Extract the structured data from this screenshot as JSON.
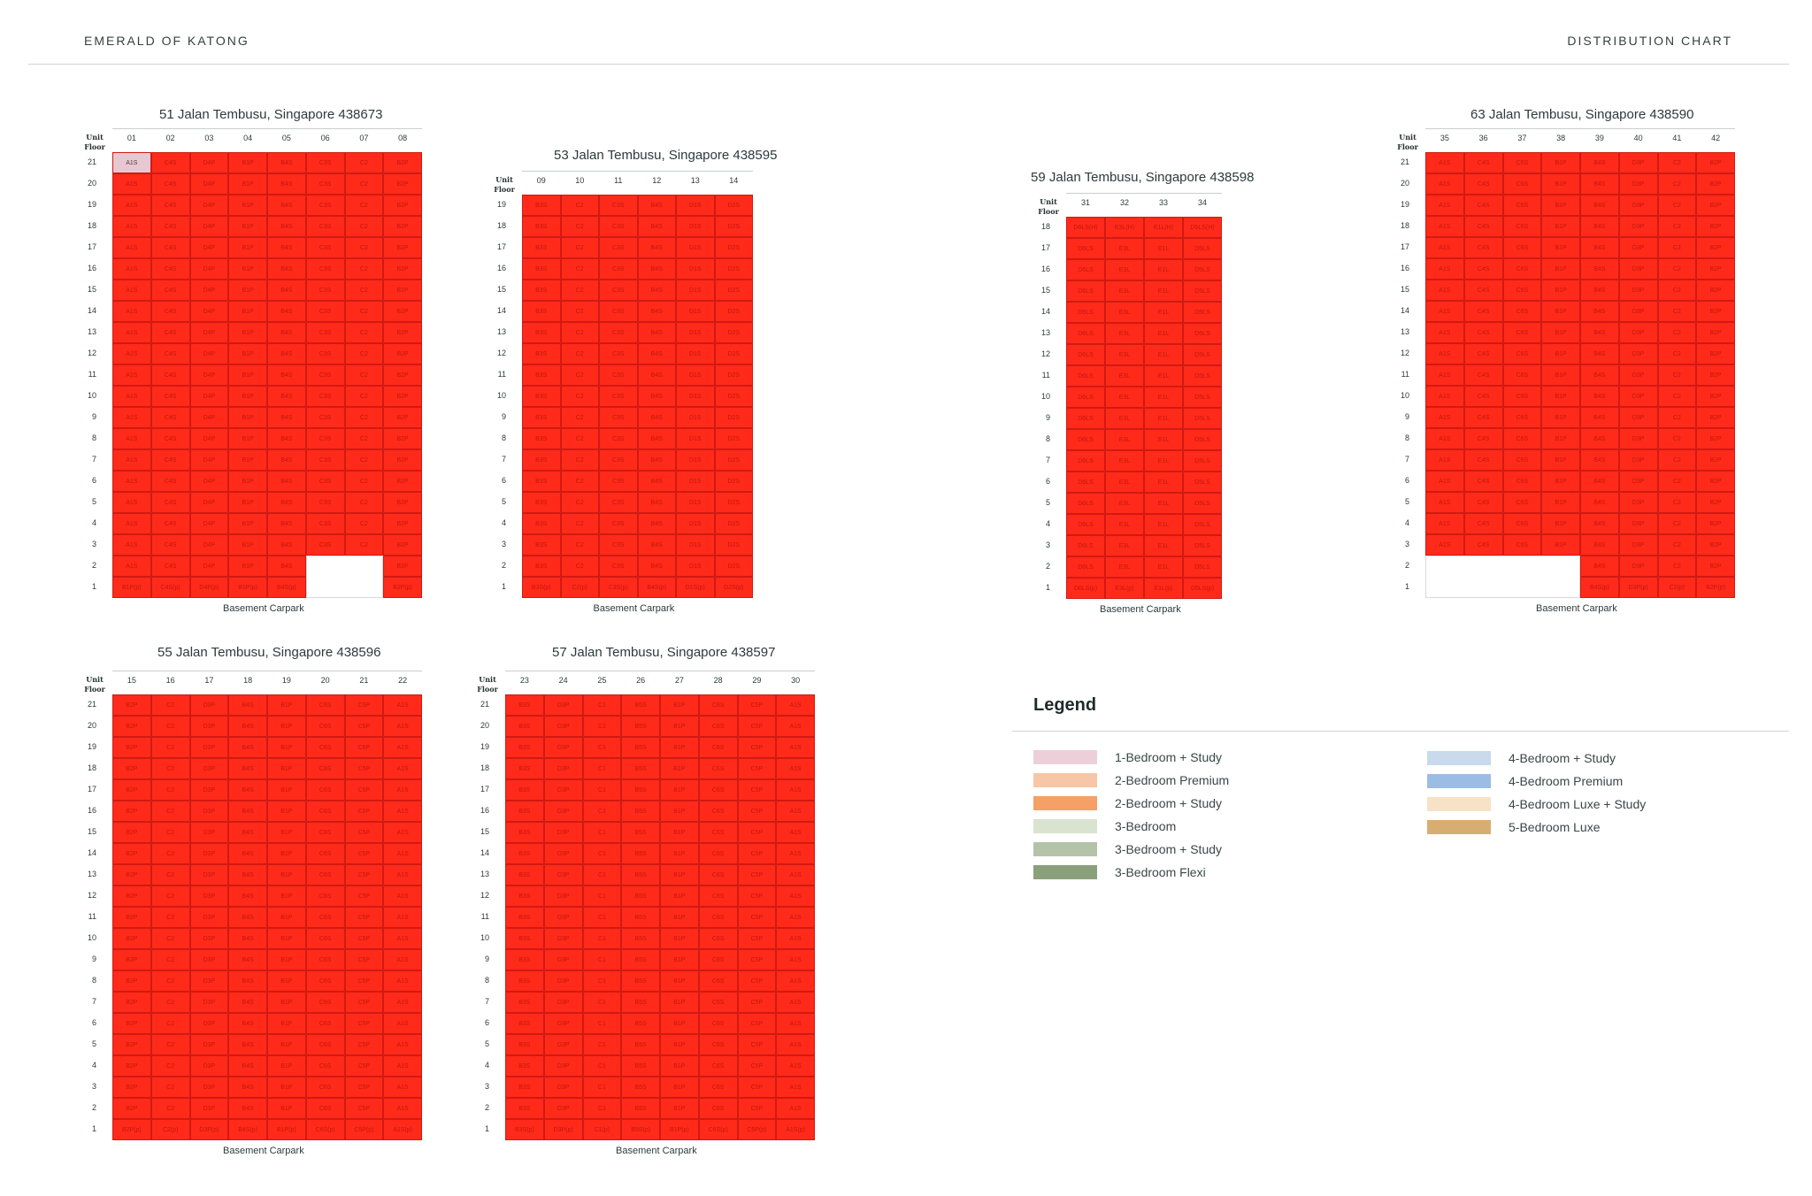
{
  "header": {
    "left": "EMERALD OF KATONG",
    "right": "DISTRIBUTION CHART"
  },
  "unit_label": "Unit",
  "floor_label": "Floor",
  "carpark_label": "Basement Carpark",
  "blocks": [
    {
      "id": "b51",
      "title": "51 Jalan Tembusu, Singapore 438673",
      "units": [
        "01",
        "02",
        "03",
        "04",
        "05",
        "06",
        "07",
        "08"
      ],
      "floors": [
        "21",
        "20",
        "19",
        "18",
        "17",
        "16",
        "15",
        "14",
        "13",
        "12",
        "11",
        "10",
        "9",
        "8",
        "7",
        "6",
        "5",
        "4",
        "3",
        "2",
        "1"
      ],
      "types": [
        "A1S",
        "C4S",
        "D4P",
        "B1P",
        "B4S",
        "C3S",
        "C2",
        "B2P"
      ],
      "ground": [
        "B1P(p)",
        "C4S(p)",
        "D4P(p)",
        "B1P(p)",
        "B4S(p)",
        "",
        "",
        "B2P(p)"
      ]
    },
    {
      "id": "b53",
      "title": "53 Jalan Tembusu, Singapore 438595",
      "units": [
        "09",
        "10",
        "11",
        "12",
        "13",
        "14"
      ],
      "floors": [
        "19",
        "18",
        "17",
        "16",
        "15",
        "14",
        "13",
        "12",
        "11",
        "10",
        "9",
        "8",
        "7",
        "6",
        "5",
        "4",
        "3",
        "2",
        "1"
      ],
      "types": [
        "B3S",
        "C2",
        "C3S",
        "B4S",
        "D1S",
        "D2S"
      ],
      "ground": [
        "B3S(p)",
        "C2(p)",
        "C3S(p)",
        "B4S(p)",
        "D1S(p)",
        "D2S(p)"
      ]
    },
    {
      "id": "b59",
      "title": "59 Jalan Tembusu, Singapore 438598",
      "units": [
        "31",
        "32",
        "33",
        "34"
      ],
      "floors": [
        "18",
        "17",
        "16",
        "15",
        "14",
        "13",
        "12",
        "11",
        "10",
        "9",
        "8",
        "7",
        "6",
        "5",
        "4",
        "3",
        "2",
        "1"
      ],
      "types": [
        "D6LS",
        "E3L",
        "E1L",
        "D5LS"
      ],
      "top": [
        "D6LS(H)",
        "E3L(H)",
        "E1L(H)",
        "D5LS(H)"
      ],
      "ground": [
        "D6LS(p)",
        "E3L(p)",
        "E1L(p)",
        "D5LS(p)"
      ]
    },
    {
      "id": "b63",
      "title": "63 Jalan Tembusu, Singapore 438590",
      "units": [
        "35",
        "36",
        "37",
        "38",
        "39",
        "40",
        "41",
        "42"
      ],
      "floors": [
        "21",
        "20",
        "19",
        "18",
        "17",
        "16",
        "15",
        "14",
        "13",
        "12",
        "11",
        "10",
        "9",
        "8",
        "7",
        "6",
        "5",
        "4",
        "3",
        "2",
        "1"
      ],
      "types": [
        "A1S",
        "C4S",
        "C6S",
        "B1P",
        "B4S",
        "D3P",
        "C2",
        "B2P"
      ],
      "ground": [
        "",
        "",
        "",
        "",
        "B4S(p)",
        "D3P(p)",
        "C2(p)",
        "B2P(p)"
      ]
    },
    {
      "id": "b55",
      "title": "55 Jalan Tembusu, Singapore 438596",
      "units": [
        "15",
        "16",
        "17",
        "18",
        "19",
        "20",
        "21",
        "22"
      ],
      "floors": [
        "21",
        "20",
        "19",
        "18",
        "17",
        "16",
        "15",
        "14",
        "13",
        "12",
        "11",
        "10",
        "9",
        "8",
        "7",
        "6",
        "5",
        "4",
        "3",
        "2",
        "1"
      ],
      "types": [
        "B2P",
        "C2",
        "D3P",
        "B4S",
        "B1P",
        "C6S",
        "C5P",
        "A1S"
      ],
      "ground": [
        "B2P(p)",
        "C2(p)",
        "D3P(p)",
        "B4S(p)",
        "B1P(p)",
        "C6S(p)",
        "C5P(p)",
        "A1S(p)"
      ]
    },
    {
      "id": "b57",
      "title": "57 Jalan Tembusu, Singapore 438597",
      "units": [
        "23",
        "24",
        "25",
        "26",
        "27",
        "28",
        "29",
        "30"
      ],
      "floors": [
        "21",
        "20",
        "19",
        "18",
        "17",
        "16",
        "15",
        "14",
        "13",
        "12",
        "11",
        "10",
        "9",
        "8",
        "7",
        "6",
        "5",
        "4",
        "3",
        "2",
        "1"
      ],
      "types": [
        "B3S",
        "D3P",
        "C1",
        "B5S",
        "B1P",
        "C6S",
        "C5P",
        "A1S"
      ],
      "ground": [
        "B3S(p)",
        "D3P(p)",
        "C1(p)",
        "B5S(p)",
        "B1P(p)",
        "C6S(p)",
        "C5P(p)",
        "A1S(p)"
      ]
    }
  ],
  "legend": {
    "title": "Legend",
    "items": [
      {
        "label": "1-Bedroom + Study",
        "color": "#eccfd8"
      },
      {
        "label": "2-Bedroom Premium",
        "color": "#f7c6a6"
      },
      {
        "label": "2-Bedroom + Study",
        "color": "#f4a067"
      },
      {
        "label": "3-Bedroom",
        "color": "#d9e3cf"
      },
      {
        "label": "3-Bedroom + Study",
        "color": "#b3c3a8"
      },
      {
        "label": "3-Bedroom Flexi",
        "color": "#8aa07b"
      },
      {
        "label": "4-Bedroom + Study",
        "color": "#c8daec"
      },
      {
        "label": "4-Bedroom Premium",
        "color": "#9cbde3"
      },
      {
        "label": "4-Bedroom Luxe + Study",
        "color": "#f8e2c6"
      },
      {
        "label": "5-Bedroom Luxe",
        "color": "#d8ad72"
      }
    ]
  }
}
